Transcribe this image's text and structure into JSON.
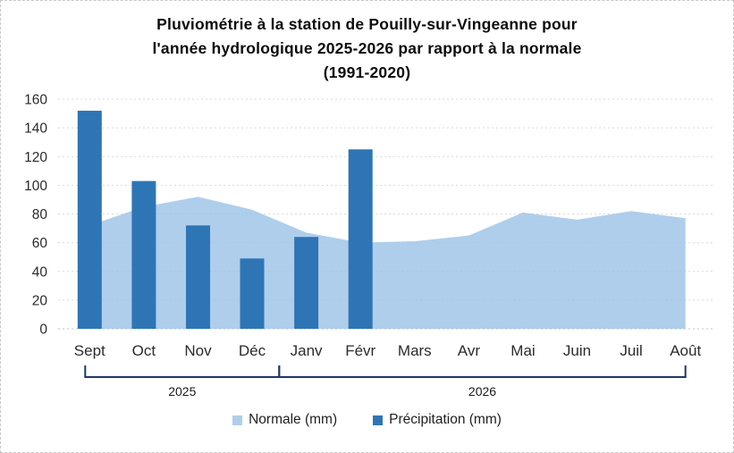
{
  "chart": {
    "title": "Pluviométrie à la station de Pouilly-sur-Vingeanne pour\nl'année hydrologique 2025-2026 par rapport à la normale\n(1991-2020)"
  },
  "chart_data": {
    "type": "combo-area-bar",
    "title": "Pluviométrie à la station de Pouilly-sur-Vingeanne pour l'année hydrologique 2025-2026 par rapport à la normale (1991-2020)",
    "categories": [
      "Sept",
      "Oct",
      "Nov",
      "Déc",
      "Janv",
      "Févr",
      "Mars",
      "Avr",
      "Mai",
      "Juin",
      "Juil",
      "Août"
    ],
    "series": [
      {
        "name": "Normale (mm)",
        "type": "area",
        "color": "#9DC3E6",
        "fill_opacity": 0.82,
        "values": [
          72,
          85,
          92,
          83,
          67,
          60,
          61,
          65,
          81,
          76,
          82,
          77
        ]
      },
      {
        "name": "Précipitation (mm)",
        "type": "bar",
        "color": "#2E75B6",
        "values": [
          152,
          103,
          72,
          49,
          64,
          125,
          null,
          null,
          null,
          null,
          null,
          null
        ]
      }
    ],
    "year_groups": [
      {
        "label": "2025",
        "from": 0,
        "to": 3
      },
      {
        "label": "2026",
        "from": 4,
        "to": 11
      }
    ],
    "ylim": [
      0,
      160
    ],
    "ytick_step": 20,
    "grid": true,
    "legend_position": "bottom",
    "colors": {
      "gridline": "#d9d9d9",
      "axis_line": "#c3c3c3",
      "bracket": "#1F3864",
      "text": "#2b2b2b"
    }
  }
}
